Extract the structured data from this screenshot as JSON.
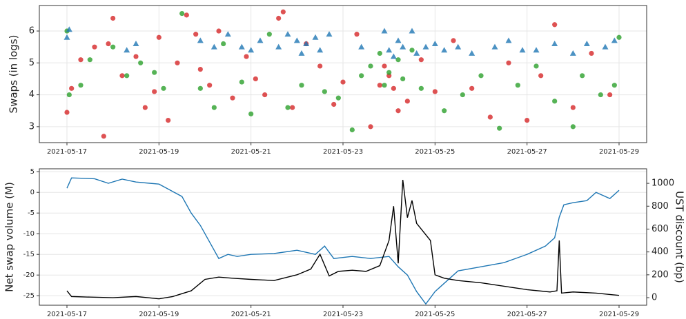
{
  "chart_data": [
    {
      "type": "scatter",
      "ylabel": "Swaps (in logs)",
      "grid": true,
      "xlim": [
        -0.6,
        12.6
      ],
      "ylim": [
        2.5,
        6.8
      ],
      "xticks": [
        {
          "value": 0,
          "label": "2021-05-17"
        },
        {
          "value": 2,
          "label": "2021-05-19"
        },
        {
          "value": 4,
          "label": "2021-05-21"
        },
        {
          "value": 6,
          "label": "2021-05-23"
        },
        {
          "value": 8,
          "label": "2021-05-25"
        },
        {
          "value": 10,
          "label": "2021-05-27"
        },
        {
          "value": 12,
          "label": "2021-05-29"
        }
      ],
      "yticks": [
        3,
        4,
        5,
        6
      ],
      "series": [
        {
          "color": "#d62728",
          "marker": "circle",
          "x": [
            0.0,
            0.1,
            0.3,
            0.6,
            0.8,
            1.0,
            1.2,
            1.5,
            1.7,
            1.9,
            2.0,
            2.2,
            2.4,
            2.6,
            2.9,
            3.1,
            3.3,
            3.6,
            3.9,
            4.1,
            4.3,
            4.6,
            4.9,
            5.2,
            5.5,
            5.8,
            6.0,
            6.3,
            6.6,
            6.8,
            7.0,
            7.2,
            7.4,
            7.7,
            8.0,
            8.4,
            8.8,
            9.2,
            9.6,
            10.0,
            10.3,
            10.6,
            11.0,
            11.4,
            11.8,
            0.9,
            2.8,
            4.7,
            6.9,
            7.1
          ],
          "values": [
            3.45,
            4.2,
            5.1,
            5.5,
            2.7,
            6.4,
            4.6,
            5.2,
            3.6,
            4.1,
            5.8,
            3.2,
            5.0,
            6.5,
            4.8,
            4.3,
            6.0,
            3.9,
            5.2,
            4.5,
            4.0,
            6.4,
            3.6,
            5.6,
            4.9,
            3.7,
            4.4,
            5.9,
            3.0,
            4.3,
            4.6,
            3.5,
            3.8,
            5.1,
            4.1,
            5.7,
            4.2,
            3.3,
            5.0,
            3.2,
            4.6,
            6.2,
            3.6,
            5.3,
            4.0,
            5.6,
            5.9,
            6.6,
            4.9,
            4.2
          ]
        },
        {
          "color": "#2ca02c",
          "marker": "circle",
          "x": [
            0.0,
            0.05,
            0.3,
            0.5,
            1.0,
            1.3,
            1.6,
            1.9,
            2.1,
            2.5,
            2.9,
            3.2,
            3.4,
            3.8,
            4.0,
            4.4,
            4.8,
            5.1,
            5.6,
            5.9,
            6.2,
            6.4,
            6.6,
            6.8,
            6.9,
            7.0,
            7.2,
            7.3,
            7.5,
            7.7,
            8.2,
            8.6,
            9.0,
            9.4,
            9.8,
            10.2,
            10.6,
            11.0,
            11.2,
            11.6,
            11.9,
            12.0
          ],
          "values": [
            6.0,
            4.0,
            4.3,
            5.1,
            5.5,
            4.6,
            5.0,
            4.7,
            4.2,
            6.55,
            4.2,
            3.6,
            5.6,
            4.4,
            3.4,
            5.9,
            3.6,
            4.3,
            4.1,
            3.9,
            2.9,
            4.6,
            4.9,
            5.3,
            4.3,
            4.7,
            5.1,
            4.5,
            5.4,
            4.2,
            3.5,
            4.0,
            4.6,
            2.95,
            4.3,
            4.9,
            3.8,
            3.0,
            4.6,
            4.0,
            4.3,
            5.8
          ]
        },
        {
          "color": "#1f77b4",
          "marker": "triangle",
          "x": [
            0.0,
            0.05,
            1.3,
            1.5,
            2.9,
            3.2,
            3.5,
            3.8,
            4.0,
            4.2,
            4.6,
            4.8,
            5.0,
            5.1,
            5.2,
            5.4,
            5.5,
            5.7,
            6.4,
            6.9,
            7.0,
            7.1,
            7.2,
            7.3,
            7.5,
            7.6,
            7.8,
            8.0,
            8.2,
            8.5,
            8.8,
            9.3,
            9.6,
            9.9,
            10.2,
            10.6,
            11.0,
            11.3,
            11.7,
            11.9
          ],
          "values": [
            5.8,
            6.05,
            5.4,
            5.6,
            5.7,
            5.5,
            5.9,
            5.5,
            5.4,
            5.7,
            5.5,
            5.9,
            5.7,
            5.3,
            5.6,
            5.8,
            5.4,
            5.9,
            5.5,
            6.0,
            5.4,
            5.2,
            5.7,
            5.5,
            6.0,
            5.3,
            5.5,
            5.6,
            5.4,
            5.5,
            5.3,
            5.5,
            5.7,
            5.4,
            5.4,
            5.6,
            5.3,
            5.6,
            5.5,
            5.7
          ]
        }
      ]
    },
    {
      "type": "line",
      "ylabel": "Net swap volume (M)",
      "ylabel_color": "#1f77b4",
      "y2label": "UST discount (bp)",
      "grid": true,
      "xlim": [
        -0.6,
        12.6
      ],
      "ylim": [
        -27.3,
        5.7
      ],
      "y2lim": [
        -66,
        1127
      ],
      "xticks": [
        {
          "value": 0,
          "label": "2021-05-17"
        },
        {
          "value": 2,
          "label": "2021-05-19"
        },
        {
          "value": 4,
          "label": "2021-05-21"
        },
        {
          "value": 6,
          "label": "2021-05-23"
        },
        {
          "value": 8,
          "label": "2021-05-25"
        },
        {
          "value": 10,
          "label": "2021-05-27"
        },
        {
          "value": 12,
          "label": "2021-05-29"
        }
      ],
      "yticks": [
        5,
        0,
        -5,
        -10,
        -15,
        -20,
        -25
      ],
      "y2ticks": [
        0,
        200,
        400,
        600,
        800,
        1000
      ],
      "series": [
        {
          "color": "#1f77b4",
          "x": [
            0,
            0.1,
            0.6,
            0.9,
            1.2,
            1.5,
            1.8,
            2.0,
            2.2,
            2.5,
            2.7,
            2.9,
            3.1,
            3.3,
            3.5,
            3.7,
            4.0,
            4.5,
            5.0,
            5.4,
            5.6,
            5.8,
            6.2,
            6.6,
            7.0,
            7.2,
            7.4,
            7.6,
            7.8,
            8.0,
            8.2,
            8.5,
            9.0,
            9.5,
            10.0,
            10.4,
            10.6,
            10.7,
            10.8,
            11.0,
            11.3,
            11.5,
            11.8,
            12.0
          ],
          "values": [
            1,
            3.5,
            3.3,
            2.2,
            3.2,
            2.5,
            2.2,
            2,
            0.8,
            -1,
            -5,
            -8,
            -12,
            -16,
            -15,
            -15.5,
            -15,
            -14.8,
            -14,
            -15,
            -13,
            -16,
            -15.5,
            -16,
            -15.5,
            -18,
            -20,
            -24,
            -27,
            -24,
            -22,
            -19,
            -18,
            -17,
            -15,
            -13,
            -11,
            -6,
            -3,
            -2.5,
            -2,
            0,
            -1.5,
            0.5
          ]
        },
        {
          "color": "#000000",
          "axis": "y2",
          "x": [
            0,
            0.1,
            0.5,
            1.0,
            1.5,
            2.0,
            2.3,
            2.7,
            3.0,
            3.3,
            3.6,
            4.0,
            4.5,
            5.0,
            5.3,
            5.5,
            5.7,
            5.9,
            6.2,
            6.5,
            6.8,
            7.0,
            7.1,
            7.2,
            7.3,
            7.4,
            7.5,
            7.6,
            7.7,
            7.9,
            8.0,
            8.2,
            8.5,
            9.0,
            9.5,
            10.0,
            10.5,
            10.65,
            10.7,
            10.75,
            11.0,
            11.5,
            12.0
          ],
          "values": [
            60,
            10,
            5,
            0,
            10,
            -10,
            10,
            60,
            160,
            180,
            170,
            160,
            150,
            200,
            250,
            380,
            190,
            230,
            240,
            230,
            280,
            500,
            800,
            300,
            1030,
            700,
            850,
            650,
            600,
            500,
            200,
            170,
            150,
            130,
            100,
            70,
            50,
            60,
            500,
            40,
            50,
            40,
            20
          ]
        }
      ]
    }
  ]
}
